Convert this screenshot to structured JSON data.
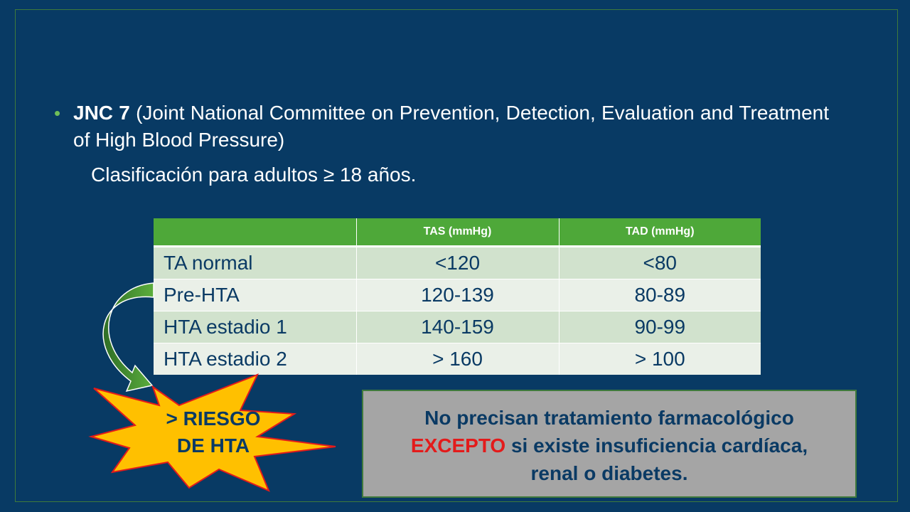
{
  "bullet": {
    "strong": "JNC 7",
    "text": " (Joint National Committee on Prevention, Detection, Evaluation and Treatment of High Blood Pressure)"
  },
  "subtitle": "Clasificación para adultos ≥ 18 años.",
  "table": {
    "headers": [
      "",
      "TAS (mmHg)",
      "TAD (mmHg)"
    ],
    "rows": [
      [
        "TA normal",
        "<120",
        "<80"
      ],
      [
        "Pre-HTA",
        "120-139",
        "80-89"
      ],
      [
        "HTA estadio 1",
        "140-159",
        "90-99"
      ],
      [
        "HTA estadio 2",
        "> 160",
        "> 100"
      ]
    ]
  },
  "callout": {
    "line1": "> RIESGO",
    "line2": "DE HTA"
  },
  "note": {
    "line1": "No precisan tratamiento farmacológico",
    "red": "EXCEPTO",
    "line2_rest": " si existe insuficiencia cardíaca,",
    "line3": "renal o diabetes."
  },
  "colors": {
    "background": "#083a64",
    "header_green": "#4ea839",
    "accent_red": "#e31b1b",
    "star_yellow": "#ffc000"
  }
}
